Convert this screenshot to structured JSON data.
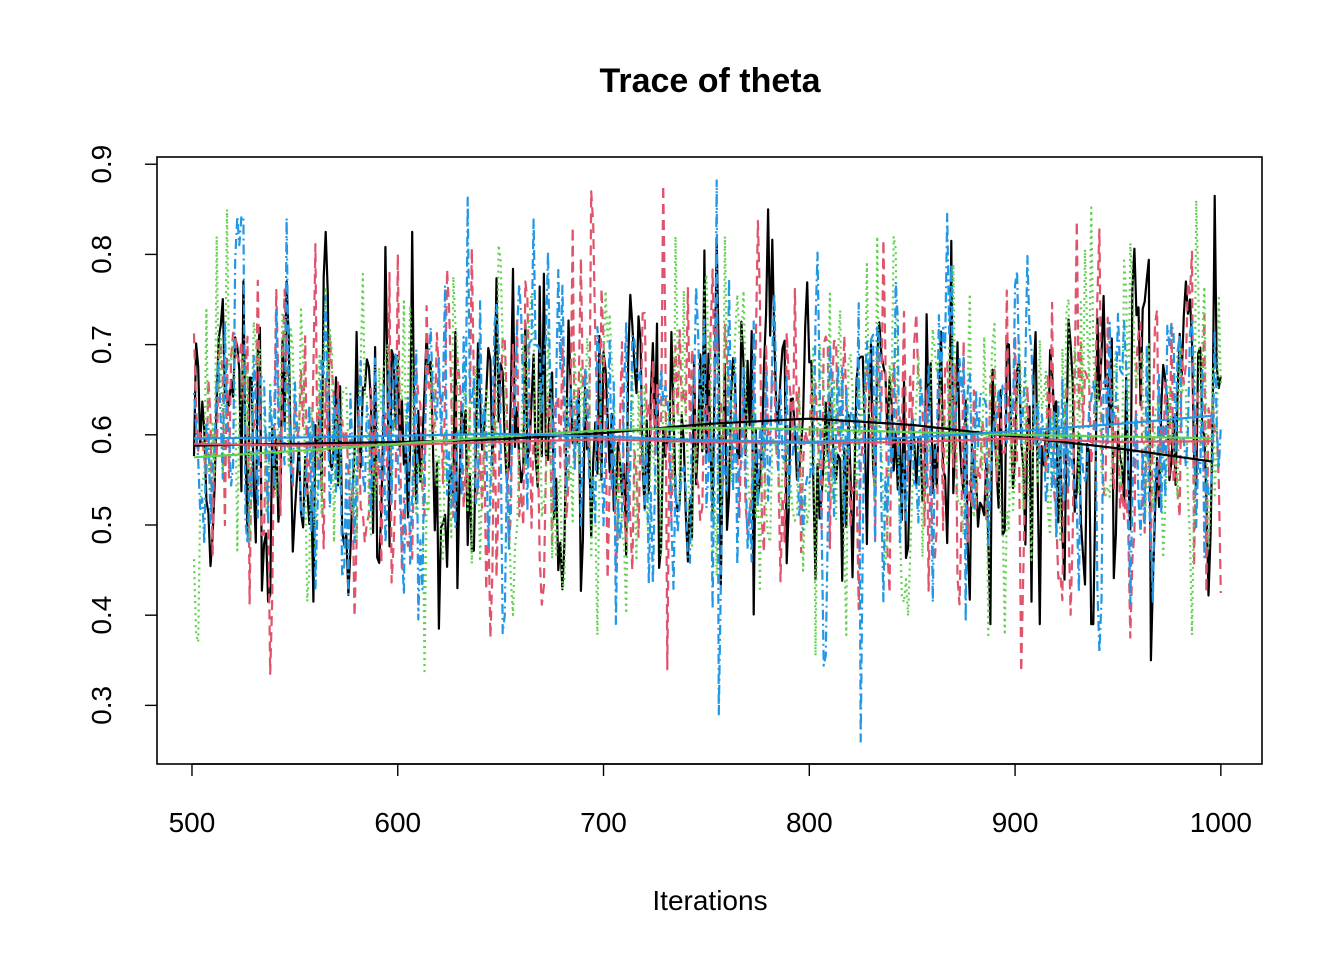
{
  "chart_data": {
    "type": "line",
    "title": "Trace of theta",
    "xlabel": "Iterations",
    "ylabel": "",
    "xlim": [
      483,
      1020
    ],
    "ylim": [
      0.235,
      0.908
    ],
    "x_ticks": [
      500,
      600,
      700,
      800,
      900,
      1000
    ],
    "x_tick_labels": [
      "500",
      "600",
      "700",
      "800",
      "900",
      "1000"
    ],
    "y_ticks": [
      0.3,
      0.4,
      0.5,
      0.6,
      0.7,
      0.8,
      0.9
    ],
    "y_tick_labels": [
      "0.3",
      "0.4",
      "0.5",
      "0.6",
      "0.7",
      "0.8",
      "0.9"
    ],
    "grid": false,
    "legend": "none",
    "iterations": {
      "start": 501,
      "end": 1000
    },
    "series": [
      {
        "color": "#000000",
        "linestyle": "solid",
        "summary": {
          "min": 0.35,
          "max": 0.865,
          "mean": 0.6
        },
        "key_points": [
          {
            "x": 525,
            "y": 0.77
          },
          {
            "x": 546,
            "y": 0.77
          },
          {
            "x": 559,
            "y": 0.415
          },
          {
            "x": 620,
            "y": 0.385
          },
          {
            "x": 780,
            "y": 0.85
          },
          {
            "x": 869,
            "y": 0.815
          },
          {
            "x": 966,
            "y": 0.35
          },
          {
            "x": 997,
            "y": 0.865
          }
        ],
        "smooth": [
          {
            "x": 501,
            "y": 0.588
          },
          {
            "x": 550,
            "y": 0.59
          },
          {
            "x": 600,
            "y": 0.592
          },
          {
            "x": 650,
            "y": 0.595
          },
          {
            "x": 700,
            "y": 0.602
          },
          {
            "x": 750,
            "y": 0.612
          },
          {
            "x": 800,
            "y": 0.618
          },
          {
            "x": 850,
            "y": 0.611
          },
          {
            "x": 900,
            "y": 0.598
          },
          {
            "x": 950,
            "y": 0.585
          },
          {
            "x": 1000,
            "y": 0.569
          }
        ]
      },
      {
        "color": "#DF536B",
        "linestyle": "dashed",
        "summary": {
          "min": 0.335,
          "max": 0.877,
          "mean": 0.593
        },
        "key_points": [
          {
            "x": 538,
            "y": 0.335
          },
          {
            "x": 694,
            "y": 0.87
          },
          {
            "x": 729,
            "y": 0.877
          },
          {
            "x": 731,
            "y": 0.34
          },
          {
            "x": 903,
            "y": 0.337
          },
          {
            "x": 993,
            "y": 0.425
          }
        ],
        "smooth": [
          {
            "x": 501,
            "y": 0.59
          },
          {
            "x": 550,
            "y": 0.588
          },
          {
            "x": 600,
            "y": 0.589
          },
          {
            "x": 650,
            "y": 0.592
          },
          {
            "x": 700,
            "y": 0.595
          },
          {
            "x": 750,
            "y": 0.592
          },
          {
            "x": 800,
            "y": 0.591
          },
          {
            "x": 850,
            "y": 0.592
          },
          {
            "x": 900,
            "y": 0.596
          },
          {
            "x": 950,
            "y": 0.592
          },
          {
            "x": 1000,
            "y": 0.593
          }
        ]
      },
      {
        "color": "#61D04F",
        "linestyle": "dotted",
        "summary": {
          "min": 0.338,
          "max": 0.86,
          "mean": 0.598
        },
        "key_points": [
          {
            "x": 503,
            "y": 0.37
          },
          {
            "x": 517,
            "y": 0.85
          },
          {
            "x": 613,
            "y": 0.338
          },
          {
            "x": 803,
            "y": 0.355
          },
          {
            "x": 937,
            "y": 0.852
          },
          {
            "x": 988,
            "y": 0.86
          }
        ],
        "smooth": [
          {
            "x": 501,
            "y": 0.575
          },
          {
            "x": 550,
            "y": 0.582
          },
          {
            "x": 600,
            "y": 0.59
          },
          {
            "x": 650,
            "y": 0.598
          },
          {
            "x": 700,
            "y": 0.605
          },
          {
            "x": 750,
            "y": 0.608
          },
          {
            "x": 800,
            "y": 0.606
          },
          {
            "x": 850,
            "y": 0.603
          },
          {
            "x": 900,
            "y": 0.6
          },
          {
            "x": 950,
            "y": 0.598
          },
          {
            "x": 1000,
            "y": 0.596
          }
        ]
      },
      {
        "color": "#2297E6",
        "linestyle": "dotdash",
        "summary": {
          "min": 0.26,
          "max": 0.882,
          "mean": 0.598
        },
        "key_points": [
          {
            "x": 546,
            "y": 0.84
          },
          {
            "x": 634,
            "y": 0.863
          },
          {
            "x": 755,
            "y": 0.882
          },
          {
            "x": 756,
            "y": 0.29
          },
          {
            "x": 825,
            "y": 0.26
          },
          {
            "x": 867,
            "y": 0.845
          }
        ],
        "smooth": [
          {
            "x": 501,
            "y": 0.596
          },
          {
            "x": 550,
            "y": 0.597
          },
          {
            "x": 600,
            "y": 0.599
          },
          {
            "x": 650,
            "y": 0.601
          },
          {
            "x": 700,
            "y": 0.598
          },
          {
            "x": 750,
            "y": 0.594
          },
          {
            "x": 800,
            "y": 0.592
          },
          {
            "x": 850,
            "y": 0.597
          },
          {
            "x": 900,
            "y": 0.604
          },
          {
            "x": 950,
            "y": 0.612
          },
          {
            "x": 1000,
            "y": 0.622
          }
        ]
      }
    ]
  }
}
